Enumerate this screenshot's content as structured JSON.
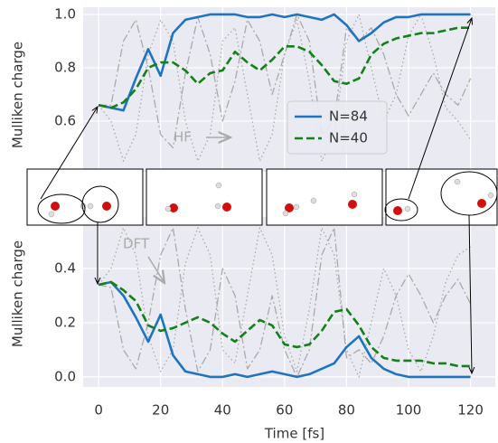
{
  "chart_data": [
    {
      "type": "line",
      "ylabel": "Mulliken charge",
      "x": [
        0,
        4,
        8,
        12,
        16,
        20,
        24,
        28,
        32,
        36,
        40,
        44,
        48,
        52,
        56,
        60,
        64,
        68,
        72,
        76,
        80,
        84,
        88,
        92,
        96,
        100,
        104,
        108,
        112,
        116,
        120
      ],
      "xlim": [
        -5,
        128
      ],
      "ylim": [
        0.41,
        1.027
      ],
      "yticks": [
        0.6,
        0.8,
        {
          "value": 1,
          "label": "1.0"
        }
      ],
      "grid": true,
      "legend": "center right",
      "annotations": [
        {
          "text": "HF"
        }
      ],
      "series": [
        {
          "color": "#aaaaaa",
          "style": "dashdot",
          "values": [
            0.66,
            0.66,
            0.9,
            0.98,
            0.8,
            0.55,
            0.5,
            0.78,
            0.99,
            0.85,
            0.6,
            0.75,
            0.98,
            0.9,
            0.7,
            0.85,
            1.0,
            0.9,
            0.55,
            0.6,
            0.95,
            0.9,
            0.95,
            0.85,
            0.7,
            0.62,
            0.7,
            0.78,
            0.7,
            0.66,
            0.76
          ]
        },
        {
          "color": "#aaaaaa",
          "style": "dotted",
          "values": [
            0.66,
            0.6,
            0.45,
            0.55,
            0.85,
            0.98,
            0.9,
            0.6,
            0.45,
            0.55,
            0.9,
            0.95,
            0.7,
            0.45,
            0.55,
            0.85,
            0.98,
            0.75,
            0.45,
            0.55,
            0.9,
            1.0,
            0.8,
            0.6,
            0.7,
            0.92,
            1.0,
            0.85,
            0.65,
            0.6,
            0.53
          ]
        },
        {
          "name": "N=84",
          "color": "#1f74c2",
          "style": "solid",
          "values": [
            0.66,
            0.65,
            0.64,
            0.76,
            0.87,
            0.77,
            0.93,
            0.98,
            0.99,
            1.0,
            1.0,
            1.0,
            0.99,
            0.99,
            1.0,
            0.99,
            1.0,
            0.99,
            0.98,
            1.0,
            0.96,
            0.9,
            0.93,
            0.97,
            0.99,
            0.99,
            1.0,
            1.0,
            1.0,
            1.0,
            1.0
          ]
        },
        {
          "name": "N=40",
          "color": "#14801a",
          "style": "dashed",
          "values": [
            0.66,
            0.65,
            0.67,
            0.72,
            0.8,
            0.82,
            0.82,
            0.79,
            0.74,
            0.78,
            0.79,
            0.86,
            0.82,
            0.79,
            0.83,
            0.88,
            0.88,
            0.86,
            0.81,
            0.75,
            0.74,
            0.76,
            0.85,
            0.89,
            0.91,
            0.92,
            0.93,
            0.93,
            0.94,
            0.95,
            0.95
          ]
        }
      ]
    },
    {
      "type": "line",
      "ylabel": "Mulliken charge",
      "xlabel": "Time [fs]",
      "x": [
        0,
        4,
        8,
        12,
        16,
        20,
        24,
        28,
        32,
        36,
        40,
        44,
        48,
        52,
        56,
        60,
        64,
        68,
        72,
        76,
        80,
        84,
        88,
        92,
        96,
        100,
        104,
        108,
        112,
        116,
        120
      ],
      "xlim": [
        -5,
        128
      ],
      "ylim": [
        -0.037,
        0.59
      ],
      "xticks": [
        0,
        20,
        40,
        60,
        80,
        100,
        120
      ],
      "yticks": [
        {
          "value": 0,
          "label": "0.0"
        },
        0.2,
        0.4
      ],
      "grid": true,
      "annotations": [
        {
          "text": "DFT"
        }
      ],
      "series": [
        {
          "color": "#aaaaaa",
          "style": "dashdot",
          "values": [
            0.34,
            0.33,
            0.1,
            0.03,
            0.2,
            0.45,
            0.55,
            0.25,
            0.02,
            0.1,
            0.4,
            0.3,
            0.03,
            0.1,
            0.3,
            0.1,
            0.0,
            0.1,
            0.45,
            0.55,
            0.07,
            0.1,
            0.05,
            0.15,
            0.3,
            0.38,
            0.3,
            0.2,
            0.3,
            0.36,
            0.27
          ]
        },
        {
          "color": "#aaaaaa",
          "style": "dotted",
          "values": [
            0.34,
            0.4,
            0.55,
            0.45,
            0.15,
            0.02,
            0.1,
            0.42,
            0.55,
            0.45,
            0.1,
            0.05,
            0.3,
            0.55,
            0.45,
            0.15,
            0.02,
            0.25,
            0.55,
            0.45,
            0.1,
            0.0,
            0.2,
            0.4,
            0.3,
            0.1,
            0.02,
            0.15,
            0.35,
            0.45,
            0.48
          ]
        },
        {
          "color": "#1f74c2",
          "style": "solid",
          "values": [
            0.34,
            0.35,
            0.3,
            0.22,
            0.13,
            0.23,
            0.08,
            0.02,
            0.01,
            0.0,
            0.0,
            0.01,
            0.0,
            0.01,
            0.02,
            0.01,
            0.0,
            0.01,
            0.03,
            0.05,
            0.11,
            0.15,
            0.07,
            0.03,
            0.01,
            0.0,
            0.0,
            0.0,
            0.0,
            0.0,
            0.0
          ]
        },
        {
          "color": "#14801a",
          "style": "dashed",
          "values": [
            0.34,
            0.35,
            0.32,
            0.28,
            0.19,
            0.17,
            0.18,
            0.2,
            0.22,
            0.2,
            0.16,
            0.13,
            0.17,
            0.21,
            0.19,
            0.12,
            0.11,
            0.12,
            0.17,
            0.24,
            0.25,
            0.19,
            0.11,
            0.07,
            0.06,
            0.06,
            0.06,
            0.05,
            0.05,
            0.04,
            0.04
          ]
        }
      ]
    }
  ]
}
